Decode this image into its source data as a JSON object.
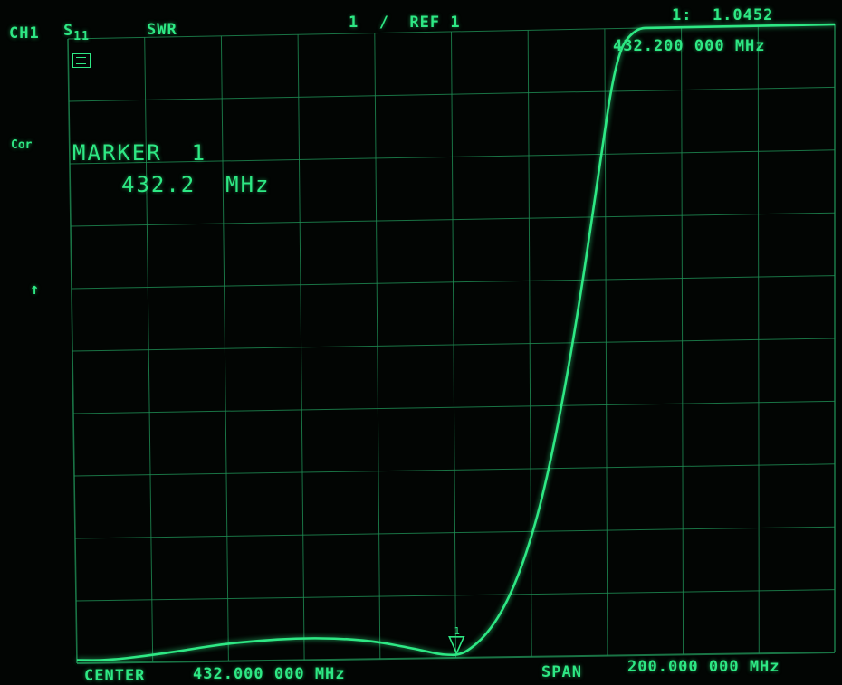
{
  "header": {
    "channel": "CH1",
    "param": "S",
    "param_sub": "11",
    "format": "SWR",
    "scale": "1  /  REF 1",
    "marker_readout": "1:  1.0452",
    "marker_freq": "432.200 000 MHz"
  },
  "side": {
    "cor": "Cor",
    "ref_arrow": "↑"
  },
  "marker_box": {
    "title": "MARKER  1",
    "freq": "432.2  MHz"
  },
  "footer": {
    "center_label": "CENTER",
    "center_value": "432.000 000 MHz",
    "span_label": "SPAN",
    "span_value": "200.000 000 MHz"
  },
  "colors": {
    "trace": "#2ee884",
    "grid": "#1f8f55",
    "background": "#020503"
  },
  "chart_data": {
    "type": "line",
    "x_unit": "MHz",
    "xlim": [
      332,
      532
    ],
    "ylim": [
      1,
      11
    ],
    "grid": true,
    "x_divisions": 10,
    "y_divisions": 10,
    "series": [
      {
        "x": [
          332,
          340,
          350,
          360,
          370,
          380,
          390,
          400,
          410,
          420,
          425,
          428,
          430,
          432.2,
          435,
          440,
          445,
          450,
          455,
          460,
          465,
          470,
          475,
          480,
          485,
          490
        ],
        "values": [
          1.05,
          1.04,
          1.1,
          1.18,
          1.27,
          1.32,
          1.35,
          1.34,
          1.29,
          1.17,
          1.1,
          1.06,
          1.05,
          1.0452,
          1.1,
          1.35,
          1.8,
          2.5,
          3.5,
          4.9,
          6.6,
          8.6,
          10.6,
          11.0,
          11.0,
          11.0
        ]
      }
    ],
    "marker": {
      "x": 432.2,
      "y": 1.0452,
      "label": "1"
    }
  }
}
